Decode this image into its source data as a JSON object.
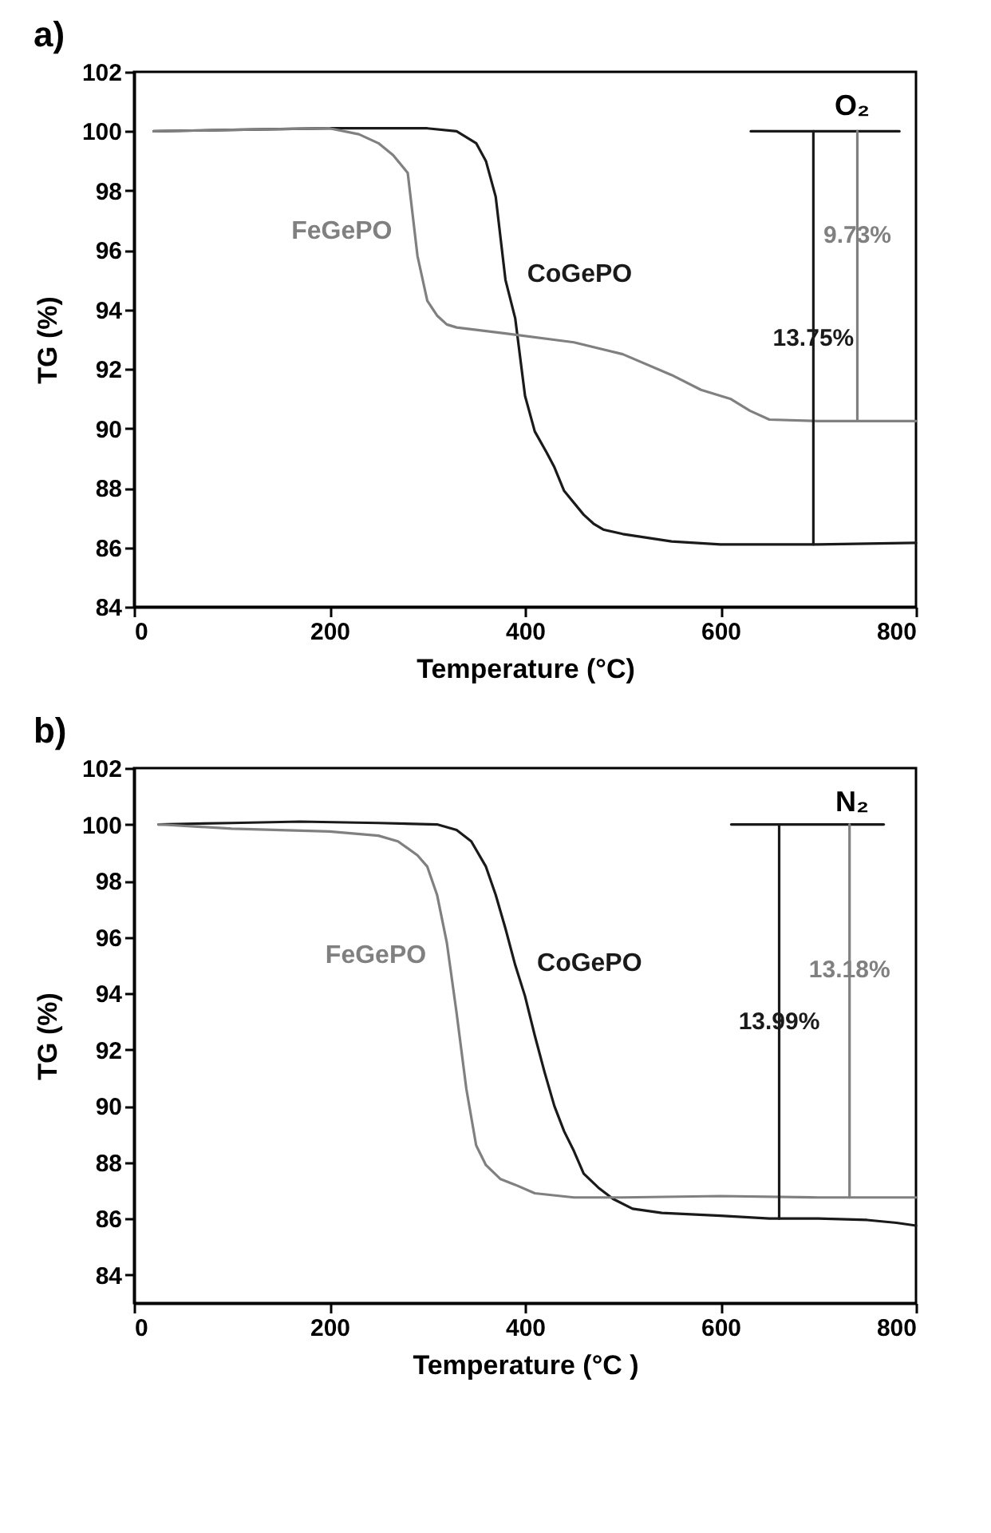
{
  "chart_data": [
    {
      "type": "line",
      "title": "a)",
      "xlabel": "Temperature (°C)",
      "ylabel": "TG (%)",
      "xlim": [
        0,
        800
      ],
      "ylim": [
        84,
        102
      ],
      "xticks": [
        0,
        200,
        400,
        600,
        800
      ],
      "yticks": [
        84,
        86,
        88,
        90,
        92,
        94,
        96,
        98,
        100,
        102
      ],
      "series": [
        {
          "name": "CoGePO",
          "color": "#1a1a1a",
          "x": [
            20,
            100,
            200,
            300,
            330,
            350,
            360,
            370,
            380,
            390,
            400,
            410,
            422,
            430,
            440,
            460,
            470,
            480,
            500,
            550,
            600,
            700,
            800
          ],
          "values": [
            100.0,
            100.05,
            100.1,
            100.1,
            100.0,
            99.6,
            99.0,
            97.8,
            95.0,
            93.7,
            91.1,
            89.9,
            89.2,
            88.7,
            87.9,
            87.1,
            86.8,
            86.6,
            86.45,
            86.2,
            86.1,
            86.1,
            86.15
          ]
        },
        {
          "name": "FeGePO",
          "color": "#808080",
          "x": [
            20,
            100,
            200,
            230,
            250,
            265,
            280,
            290,
            300,
            310,
            320,
            330,
            380,
            450,
            500,
            550,
            580,
            610,
            630,
            650,
            700,
            800
          ],
          "values": [
            100.0,
            100.05,
            100.1,
            99.9,
            99.6,
            99.2,
            98.6,
            95.8,
            94.3,
            93.8,
            93.5,
            93.4,
            93.2,
            92.9,
            92.5,
            91.8,
            91.3,
            91.0,
            90.6,
            90.3,
            90.25,
            90.25
          ]
        },
        {
          "color": "#1a1a1a",
          "x": [
            631,
            783
          ],
          "values": [
            100,
            100
          ]
        },
        {
          "name": "13.75%",
          "color": "#1a1a1a",
          "x": [
            695,
            695
          ],
          "values": [
            100,
            86.1
          ]
        },
        {
          "name": "9.73%",
          "color": "#808080",
          "x": [
            740,
            740
          ],
          "values": [
            100,
            90.25
          ]
        }
      ],
      "annotations": [
        "O₂"
      ]
    },
    {
      "type": "line",
      "title": "b)",
      "xlabel": "Temperature (°C )",
      "ylabel": "TG (%)",
      "xlim": [
        0,
        800
      ],
      "ylim": [
        83,
        102
      ],
      "xticks": [
        0,
        200,
        400,
        600,
        800
      ],
      "yticks": [
        84,
        86,
        88,
        90,
        92,
        94,
        96,
        98,
        100,
        102
      ],
      "series": [
        {
          "name": "CoGePO",
          "color": "#1a1a1a",
          "x": [
            25,
            100,
            170,
            250,
            310,
            330,
            345,
            360,
            370,
            380,
            390,
            400,
            410,
            420,
            430,
            440,
            450,
            460,
            475,
            490,
            510,
            540,
            600,
            650,
            700,
            750,
            780,
            800
          ],
          "values": [
            100.0,
            100.05,
            100.1,
            100.05,
            100.0,
            99.8,
            99.4,
            98.5,
            97.5,
            96.3,
            95.0,
            93.9,
            92.5,
            91.2,
            90.0,
            89.1,
            88.4,
            87.6,
            87.1,
            86.7,
            86.35,
            86.2,
            86.1,
            86.0,
            86.0,
            85.95,
            85.85,
            85.75
          ]
        },
        {
          "name": "FeGePO",
          "color": "#808080",
          "x": [
            25,
            100,
            200,
            250,
            270,
            290,
            300,
            310,
            320,
            330,
            340,
            350,
            360,
            375,
            390,
            410,
            450,
            500,
            600,
            700,
            800
          ],
          "values": [
            100.0,
            99.85,
            99.75,
            99.6,
            99.4,
            98.9,
            98.5,
            97.5,
            95.8,
            93.3,
            90.6,
            88.6,
            87.9,
            87.4,
            87.2,
            86.9,
            86.75,
            86.75,
            86.8,
            86.75,
            86.75
          ]
        },
        {
          "color": "#1a1a1a",
          "x": [
            611,
            767
          ],
          "values": [
            100,
            100
          ]
        },
        {
          "name": "13.99%",
          "color": "#1a1a1a",
          "x": [
            660,
            660
          ],
          "values": [
            100,
            86.0
          ]
        },
        {
          "name": "13.18%",
          "color": "#808080",
          "x": [
            732,
            732
          ],
          "values": [
            100,
            86.75
          ]
        }
      ],
      "annotations": [
        "N₂"
      ]
    }
  ]
}
